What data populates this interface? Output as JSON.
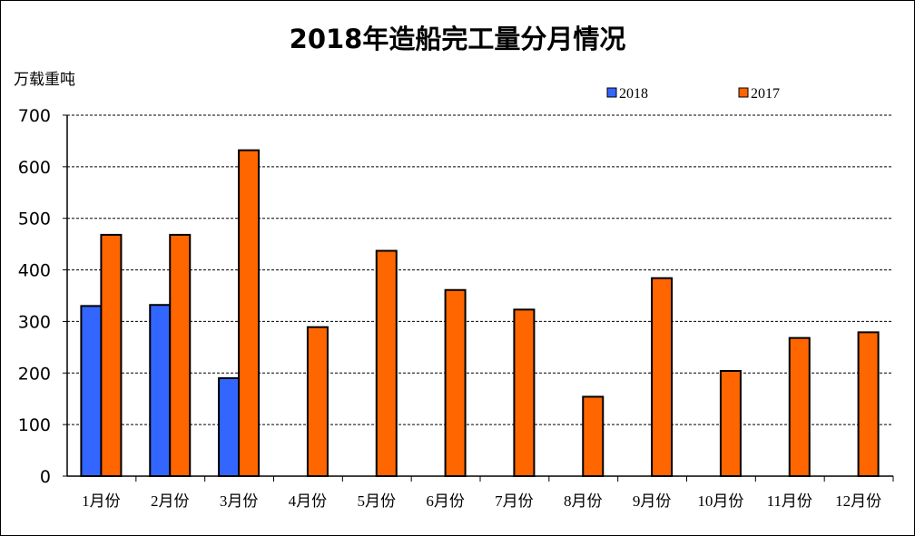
{
  "chart_data": {
    "type": "bar",
    "title": "2018年造船完工量分月情况",
    "ylabel": "万载重吨",
    "xlabel": "",
    "ylim": [
      0,
      700
    ],
    "yticks": [
      0,
      100,
      200,
      300,
      400,
      500,
      600,
      700
    ],
    "grid": true,
    "legend_position": "top",
    "categories": [
      "1月份",
      "2月份",
      "3月份",
      "4月份",
      "5月份",
      "6月份",
      "7月份",
      "8月份",
      "9月份",
      "10月份",
      "11月份",
      "12月份"
    ],
    "series": [
      {
        "name": "2018",
        "color": "#3366FF",
        "values": [
          330,
          332,
          190,
          null,
          null,
          null,
          null,
          null,
          null,
          null,
          null,
          null
        ]
      },
      {
        "name": "2017",
        "color": "#FF6600",
        "values": [
          468,
          468,
          632,
          289,
          437,
          361,
          323,
          154,
          384,
          204,
          268,
          279
        ]
      }
    ]
  }
}
